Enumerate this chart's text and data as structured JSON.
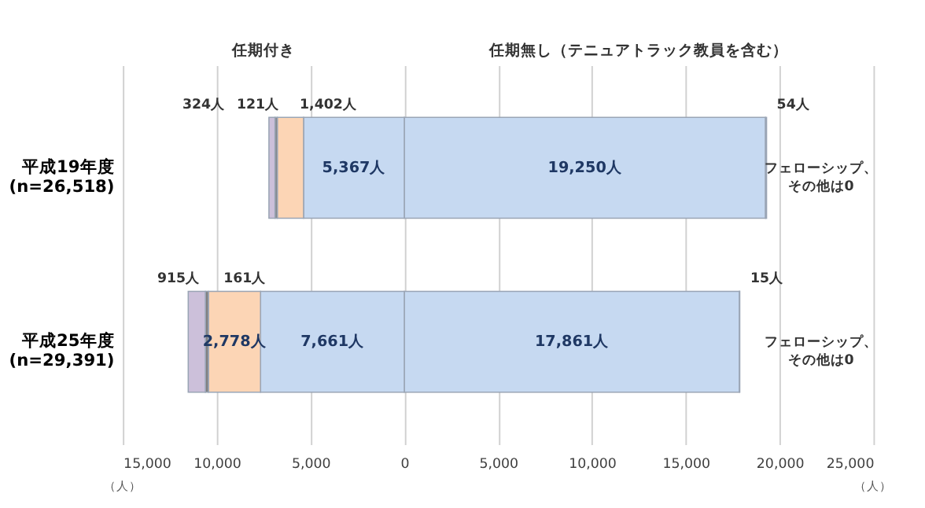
{
  "chart_data": {
    "type": "bar",
    "orientation": "horizontal",
    "categories": [
      "平成19年度\n(n=26,518)",
      "平成25年度\n(n=29,391)"
    ],
    "series": [
      {
        "color": "#c6d9f1",
        "values": [
          19250,
          17861
        ],
        "base": [
          0,
          0
        ],
        "value_labels": [
          "19,250人",
          "17,861人"
        ]
      },
      {
        "color": "#a6a6a6",
        "values": [
          54,
          15
        ],
        "base": [
          19250,
          17861
        ],
        "value_labels": [
          "54人",
          "15人"
        ]
      },
      {
        "color": "#c6d9f1",
        "values": [
          5367,
          7661
        ],
        "base": [
          -5367,
          -7661
        ],
        "value_labels": [
          "5,367人",
          "7,661人"
        ]
      },
      {
        "color": "#fcd5b5",
        "values": [
          1402,
          2778
        ],
        "base": [
          -6769,
          -10439
        ],
        "value_labels": [
          "1,402人",
          "2,778人"
        ]
      },
      {
        "color": "#808080",
        "values": [
          121,
          161
        ],
        "base": [
          -6890,
          -10600
        ],
        "value_labels": [
          "121人",
          "161人"
        ]
      },
      {
        "color": "#ccc0da",
        "values": [
          324,
          915
        ],
        "base": [
          -7214,
          -11515
        ],
        "value_labels": [
          "324人",
          "915人"
        ]
      }
    ],
    "xlim": [
      -15000,
      25000
    ],
    "xticks": [
      {
        "value": -15000,
        "label": "15,000"
      },
      {
        "value": -10000,
        "label": "10,000"
      },
      {
        "value": -5000,
        "label": "5,000"
      },
      0,
      {
        "value": 5000,
        "label": "5,000"
      },
      {
        "value": 10000,
        "label": "10,000"
      },
      {
        "value": 15000,
        "label": "15,000"
      },
      {
        "value": 20000,
        "label": "20,000"
      },
      {
        "value": 25000,
        "label": "25,000"
      }
    ],
    "xlabel": "（人）",
    "grid": "x",
    "annotations": [
      "任期付き",
      "任期無し（テニュアトラック教員を含む）",
      "フェローシップ、その他は0",
      "フェローシップ、その他は0"
    ]
  }
}
